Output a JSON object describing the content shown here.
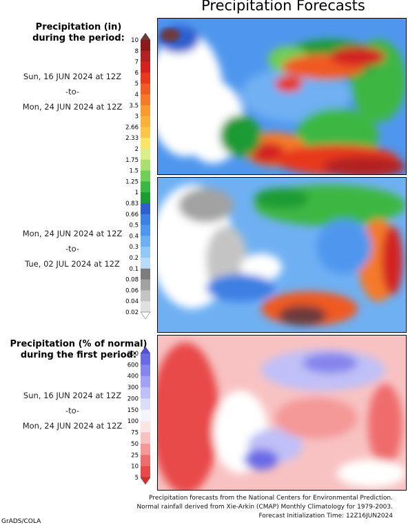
{
  "title": "Precipitation Forecasts",
  "legend1": {
    "title_line1": "Precipitation (in)",
    "title_line2": "during the period:",
    "ticks": [
      "10",
      "8",
      "7",
      "6",
      "5",
      "4",
      "3.5",
      "3",
      "2.66",
      "2.33",
      "2",
      "1.75",
      "1.5",
      "1.25",
      "1",
      "0.83",
      "0.66",
      "0.5",
      "0.4",
      "0.3",
      "0.2",
      "0.1",
      "0.08",
      "0.06",
      "0.04",
      "0.02"
    ],
    "colors": [
      "#6e3b3b",
      "#8b1a1a",
      "#b22222",
      "#d32020",
      "#e8391f",
      "#f05a24",
      "#f47a2a",
      "#f89a30",
      "#fab13a",
      "#fcc646",
      "#fde466",
      "#dbee8a",
      "#a8df6e",
      "#6fcf56",
      "#3db743",
      "#1f9b34",
      "#2f5fcf",
      "#3d7fe3",
      "#4f97ee",
      "#6fb0f3",
      "#93c8f7",
      "#b8dcfa",
      "#7d7d7d",
      "#a2a2a2",
      "#c4c4c4",
      "#e0e0e0",
      "#ffffff"
    ]
  },
  "period1": {
    "start": "Sun, 16 JUN 2024 at 12Z",
    "sep": "-to-",
    "end": "Mon, 24 JUN 2024 at 12Z"
  },
  "period2": {
    "start": "Mon, 24 JUN 2024 at 12Z",
    "sep": "-to-",
    "end": "Tue, 02 JUL 2024 at 12Z"
  },
  "legend2": {
    "title_line1": "Precipitation (% of normal)",
    "title_line2": "during the first period:",
    "ticks": [
      "800",
      "600",
      "400",
      "300",
      "200",
      "150",
      "100",
      "75",
      "50",
      "25",
      "10",
      "5"
    ],
    "colors": [
      "#5050d8",
      "#6a6ae6",
      "#8585ee",
      "#a2a2f4",
      "#c0c0f8",
      "#dcdcfb",
      "#f4f4ff",
      "#fbe4e4",
      "#f8c2c2",
      "#f49898",
      "#ef6c6c",
      "#e84848",
      "#e02a2a"
    ]
  },
  "period3": {
    "start": "Sun, 16 JUN 2024 at 12Z",
    "sep": "-to-",
    "end": "Mon, 24 JUN 2024 at 12Z"
  },
  "footer": {
    "line1": "Precipitation forecasts from the National Centers for Environmental Prediction.",
    "line2": "Normal rainfall derived from Xie-Arkin (CMAP) Monthly Climatology for 1979-2003.",
    "line3": "Forecast Initialization Time: 12Z16JUN2024"
  },
  "credit": "GrADS/COLA"
}
